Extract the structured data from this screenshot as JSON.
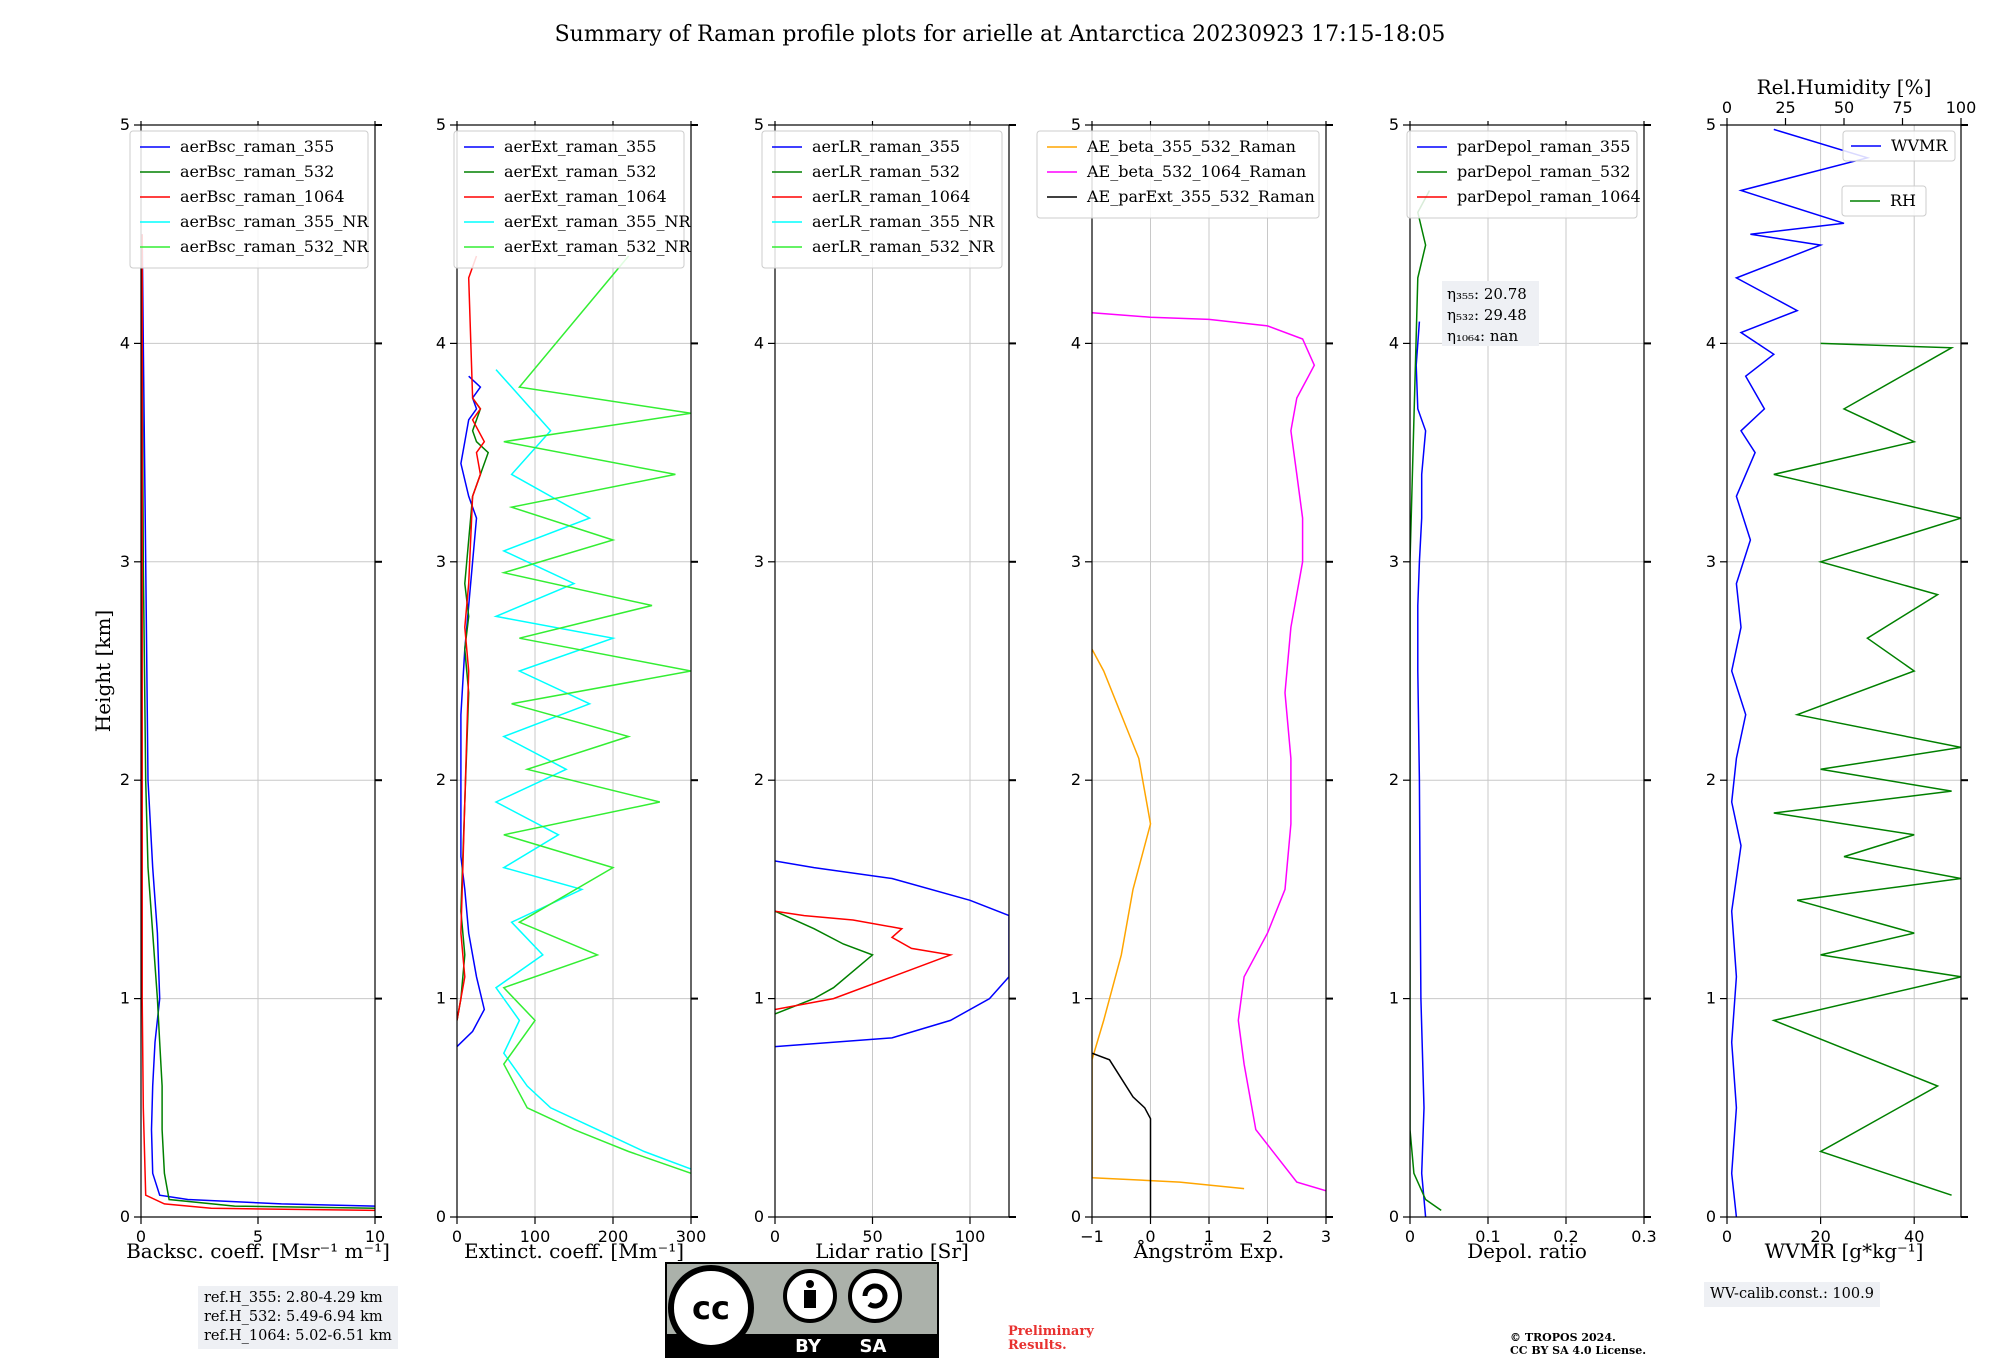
{
  "title": "Summary of Raman profile plots for arielle at Antarctica 20230923 17:15-18:05",
  "chart_data": [
    {
      "type": "line",
      "xlabel": "Backsc. coeff. [Msr⁻¹ m⁻¹]",
      "ylabel": "Height [km]",
      "xlim": [
        0,
        10
      ],
      "ylim": [
        0,
        5
      ],
      "xticks": [
        0,
        5,
        10
      ],
      "yticks": [
        0,
        1,
        2,
        3,
        4,
        5
      ],
      "grid": true,
      "legend": "top-right",
      "series": [
        {
          "name": "aerBsc_raman_355",
          "color": "#0000ff",
          "x": [
            10,
            6,
            2,
            0.8,
            0.5,
            0.45,
            0.5,
            0.6,
            0.8,
            0.7,
            0.5,
            0.3,
            0.2,
            0.1,
            0.05
          ],
          "y": [
            0.05,
            0.06,
            0.08,
            0.1,
            0.2,
            0.4,
            0.6,
            0.8,
            1.0,
            1.3,
            1.6,
            2.0,
            3.0,
            4.0,
            4.5
          ]
        },
        {
          "name": "aerBsc_raman_532",
          "color": "#008000",
          "x": [
            10,
            4,
            1.2,
            1.0,
            0.9,
            0.9,
            0.8,
            0.7,
            0.5,
            0.3,
            0.2,
            0.1,
            0.05
          ],
          "y": [
            0.04,
            0.05,
            0.08,
            0.2,
            0.4,
            0.6,
            0.8,
            1.0,
            1.3,
            1.6,
            2.0,
            3.0,
            4.0
          ]
        },
        {
          "name": "aerBsc_raman_1064",
          "color": "#ff0000",
          "x": [
            10,
            3,
            1.0,
            0.2,
            0.1,
            0.05,
            0.05,
            0.05,
            0.05
          ],
          "y": [
            0.03,
            0.04,
            0.06,
            0.1,
            0.5,
            1.0,
            2.0,
            3.0,
            4.5
          ]
        },
        {
          "name": "aerBsc_raman_355_NR",
          "color": "#00ffff",
          "x": [],
          "y": []
        },
        {
          "name": "aerBsc_raman_532_NR",
          "color": "#33ee33",
          "x": [],
          "y": []
        }
      ]
    },
    {
      "type": "line",
      "xlabel": "Extinct. coeff. [Mm⁻¹]",
      "xlim": [
        0,
        300
      ],
      "ylim": [
        0,
        5
      ],
      "xticks": [
        0,
        100,
        200,
        300
      ],
      "yticks": [
        0,
        1,
        2,
        3,
        4,
        5
      ],
      "grid": true,
      "legend": "top-right",
      "series": [
        {
          "name": "aerExt_raman_355",
          "color": "#0000ff",
          "x": [
            0,
            20,
            35,
            25,
            15,
            10,
            5,
            5,
            5,
            10,
            15,
            20,
            25,
            15,
            5,
            10,
            15,
            25,
            20,
            30,
            15
          ],
          "y": [
            0.78,
            0.85,
            0.95,
            1.1,
            1.3,
            1.5,
            1.65,
            2.0,
            2.3,
            2.6,
            2.8,
            3.0,
            3.2,
            3.3,
            3.45,
            3.55,
            3.65,
            3.7,
            3.75,
            3.8,
            3.85
          ]
        },
        {
          "name": "aerExt_raman_532",
          "color": "#008000",
          "x": [
            0,
            5,
            10,
            5,
            15,
            10,
            15,
            10,
            20,
            30,
            40,
            25,
            20,
            30,
            20
          ],
          "y": [
            0.9,
            1.0,
            1.2,
            1.4,
            2.4,
            2.6,
            2.75,
            2.9,
            3.3,
            3.4,
            3.5,
            3.55,
            3.6,
            3.7,
            3.75
          ]
        },
        {
          "name": "aerExt_raman_1064",
          "color": "#ff0000",
          "x": [
            0,
            10,
            5,
            15,
            10,
            15,
            20,
            30,
            25,
            35,
            20,
            30,
            20,
            15,
            25
          ],
          "y": [
            0.9,
            1.1,
            1.3,
            2.5,
            2.7,
            2.9,
            3.3,
            3.4,
            3.5,
            3.55,
            3.65,
            3.7,
            3.75,
            4.3,
            4.4
          ]
        },
        {
          "name": "aerExt_raman_355_NR",
          "color": "#00ffff",
          "x": [
            300,
            240,
            180,
            120,
            90,
            60,
            80,
            50,
            110,
            70,
            160,
            60,
            130,
            50,
            140,
            60,
            170,
            80,
            200,
            50,
            150,
            60,
            170,
            70,
            120,
            50
          ],
          "y": [
            0.22,
            0.3,
            0.4,
            0.5,
            0.6,
            0.75,
            0.9,
            1.05,
            1.2,
            1.35,
            1.5,
            1.6,
            1.75,
            1.9,
            2.05,
            2.2,
            2.35,
            2.5,
            2.65,
            2.75,
            2.9,
            3.05,
            3.2,
            3.4,
            3.6,
            3.88
          ]
        },
        {
          "name": "aerExt_raman_532_NR",
          "color": "#33ee33",
          "x": [
            300,
            220,
            150,
            90,
            60,
            100,
            60,
            180,
            80,
            200,
            60,
            260,
            90,
            220,
            70,
            300,
            80,
            250,
            60,
            200,
            70,
            280,
            60,
            300,
            80,
            220
          ],
          "y": [
            0.2,
            0.3,
            0.4,
            0.5,
            0.7,
            0.9,
            1.05,
            1.2,
            1.35,
            1.6,
            1.75,
            1.9,
            2.05,
            2.2,
            2.35,
            2.5,
            2.65,
            2.8,
            2.95,
            3.1,
            3.25,
            3.4,
            3.55,
            3.68,
            3.8,
            4.4
          ]
        }
      ]
    },
    {
      "type": "line",
      "xlabel": "Lidar ratio [Sr]",
      "xlim": [
        0,
        120
      ],
      "ylim": [
        0,
        5
      ],
      "xticks": [
        0,
        50,
        100
      ],
      "yticks": [
        0,
        1,
        2,
        3,
        4,
        5
      ],
      "grid": true,
      "legend": "top-right",
      "series": [
        {
          "name": "aerLR_raman_355",
          "color": "#0000ff",
          "x": [
            0,
            60,
            90,
            110,
            120,
            120,
            100,
            60,
            20,
            0
          ],
          "y": [
            0.78,
            0.82,
            0.9,
            1.0,
            1.1,
            1.38,
            1.45,
            1.55,
            1.6,
            1.63
          ]
        },
        {
          "name": "aerLR_raman_532",
          "color": "#008000",
          "x": [
            0,
            20,
            30,
            50,
            35,
            20,
            5,
            0
          ],
          "y": [
            0.93,
            1.0,
            1.05,
            1.2,
            1.25,
            1.32,
            1.38,
            1.4
          ]
        },
        {
          "name": "aerLR_raman_1064",
          "color": "#ff0000",
          "x": [
            0,
            30,
            60,
            90,
            70,
            60,
            65,
            40,
            15,
            0
          ],
          "y": [
            0.95,
            1.0,
            1.1,
            1.2,
            1.23,
            1.28,
            1.32,
            1.36,
            1.38,
            1.4
          ]
        },
        {
          "name": "aerLR_raman_355_NR",
          "color": "#00ffff",
          "x": [],
          "y": []
        },
        {
          "name": "aerLR_raman_532_NR",
          "color": "#33ee33",
          "x": [],
          "y": []
        }
      ]
    },
    {
      "type": "line",
      "xlabel": "Ångström Exp.",
      "xlim": [
        -1,
        3
      ],
      "ylim": [
        0,
        5
      ],
      "xticks": [
        -1,
        0,
        1,
        2,
        3
      ],
      "yticks": [
        0,
        1,
        2,
        3,
        4,
        5
      ],
      "grid": true,
      "legend": "top-right",
      "series": [
        {
          "name": "AE_beta_355_532_Raman",
          "color": "#ffa500",
          "x": [
            1.6,
            0.5,
            -1,
            -1,
            -0.8,
            -0.5,
            -0.3,
            0,
            -0.2,
            -0.8,
            -1
          ],
          "y": [
            0.13,
            0.16,
            0.18,
            0.72,
            0.9,
            1.2,
            1.5,
            1.8,
            2.1,
            2.5,
            2.6
          ]
        },
        {
          "name": "AE_beta_532_1064_Raman",
          "color": "#ff00ff",
          "x": [
            3,
            2.5,
            1.8,
            1.6,
            1.5,
            1.6,
            2.0,
            2.3,
            2.4,
            2.4,
            2.3,
            2.4,
            2.6,
            2.6,
            2.5,
            2.4,
            2.5,
            2.7,
            2.8,
            2.6,
            2.0,
            1.0,
            0,
            -1
          ],
          "y": [
            0.12,
            0.16,
            0.4,
            0.7,
            0.9,
            1.1,
            1.3,
            1.5,
            1.8,
            2.1,
            2.4,
            2.7,
            3.0,
            3.2,
            3.4,
            3.6,
            3.75,
            3.85,
            3.9,
            4.02,
            4.08,
            4.11,
            4.12,
            4.14
          ]
        },
        {
          "name": "AE_parExt_355_532_Raman",
          "color": "#000000",
          "x": [
            0,
            0,
            -0.1,
            -0.3,
            -0.7,
            -1
          ],
          "y": [
            0,
            0.45,
            0.5,
            0.55,
            0.72,
            0.75
          ]
        }
      ]
    },
    {
      "type": "line",
      "xlabel": "Depol. ratio",
      "xlim": [
        0,
        0.3
      ],
      "ylim": [
        0,
        5
      ],
      "xticks": [
        0,
        0.1,
        0.2,
        0.3
      ],
      "yticks": [
        0,
        1,
        2,
        3,
        4,
        5
      ],
      "grid": true,
      "legend": "top-right",
      "annotations": [
        "η₃₅₅: 20.78",
        "η₅₃₂: 29.48",
        "η₁₀₆₄: nan"
      ],
      "series": [
        {
          "name": "parDepol_raman_355",
          "color": "#0000ff",
          "x": [
            0.02,
            0.015,
            0.018,
            0.014,
            0.013,
            0.012,
            0.01,
            0.01,
            0.012,
            0.015,
            0.015,
            0.02,
            0.01,
            0.008,
            0.012
          ],
          "y": [
            0,
            0.2,
            0.5,
            1.0,
            1.5,
            2.0,
            2.5,
            2.8,
            3.0,
            3.2,
            3.4,
            3.6,
            3.7,
            3.9,
            4.1
          ]
        },
        {
          "name": "parDepol_raman_532",
          "color": "#008000",
          "x": [
            0.04,
            0.02,
            0.005,
            0,
            0,
            0,
            0,
            0,
            0.01,
            0.02,
            0.01,
            0.025
          ],
          "y": [
            0.03,
            0.08,
            0.2,
            0.4,
            1.0,
            2.0,
            2.5,
            3.0,
            4.3,
            4.45,
            4.6,
            4.7
          ]
        },
        {
          "name": "parDepol_raman_1064",
          "color": "#ff0000",
          "x": [],
          "y": []
        }
      ]
    },
    {
      "type": "line",
      "xlabel": "WVMR [g*kg⁻¹]",
      "x2label": "Rel.Humidity [%]",
      "xlim": [
        0,
        50
      ],
      "x2lim": [
        0,
        100
      ],
      "ylim": [
        0,
        5
      ],
      "xticks": [
        0,
        20,
        40
      ],
      "x2ticks": [
        0,
        25,
        50,
        75,
        100
      ],
      "yticks": [
        0,
        1,
        2,
        3,
        4,
        5
      ],
      "grid": true,
      "legend": "top-right",
      "series": [
        {
          "name": "WVMR",
          "color": "#0000ff",
          "x": [
            2,
            1,
            2,
            1,
            2,
            1,
            3,
            1,
            2,
            4,
            1,
            3,
            2,
            5,
            2,
            6,
            3,
            8,
            4,
            10,
            3,
            15,
            2,
            20,
            5,
            25,
            3,
            30,
            10
          ],
          "y": [
            0,
            0.2,
            0.5,
            0.8,
            1.1,
            1.4,
            1.7,
            1.9,
            2.1,
            2.3,
            2.5,
            2.7,
            2.9,
            3.1,
            3.3,
            3.5,
            3.6,
            3.7,
            3.85,
            3.95,
            4.05,
            4.15,
            4.3,
            4.45,
            4.5,
            4.55,
            4.7,
            4.85,
            4.98
          ]
        },
        {
          "name": "RH",
          "color": "#008000",
          "x": [
            48,
            20,
            45,
            10,
            50,
            20,
            40,
            15,
            50,
            25,
            40,
            10,
            48,
            20,
            50,
            15,
            40,
            30,
            45,
            20,
            50,
            10,
            40,
            25,
            48,
            20
          ],
          "y": [
            0.1,
            0.3,
            0.6,
            0.9,
            1.1,
            1.2,
            1.3,
            1.45,
            1.55,
            1.65,
            1.75,
            1.85,
            1.95,
            2.05,
            2.15,
            2.3,
            2.5,
            2.65,
            2.85,
            3.0,
            3.2,
            3.4,
            3.55,
            3.7,
            3.98,
            4.0
          ]
        }
      ]
    }
  ],
  "ref_box": {
    "lines": [
      "ref.H_355: 2.80-4.29 km",
      "ref.H_532: 5.49-6.94 km",
      "ref.H_1064: 5.02-6.51 km"
    ]
  },
  "wv_box": {
    "text": "WV-calib.const.: 100.9"
  },
  "preliminary": {
    "line1": "Preliminary",
    "line2": "Results."
  },
  "copyright": {
    "line1": "© TROPOS 2024.",
    "line2": "CC BY SA 4.0 License."
  },
  "cc_badge": {
    "label": "cc",
    "by": "BY",
    "sa": "SA"
  }
}
